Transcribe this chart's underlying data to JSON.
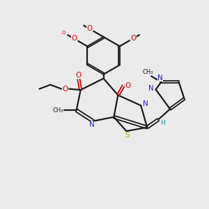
{
  "background_color": "#ebebeb",
  "bond_color": "#1a1a1a",
  "nitrogen_color": "#2222cc",
  "oxygen_color": "#cc0000",
  "sulfur_color": "#b8a000",
  "carbon_color": "#1a1a1a",
  "hydrogen_color": "#009999",
  "figsize": [
    3.0,
    3.0
  ],
  "dpi": 100,
  "xlim": [
    0,
    10
  ],
  "ylim": [
    0,
    10
  ]
}
